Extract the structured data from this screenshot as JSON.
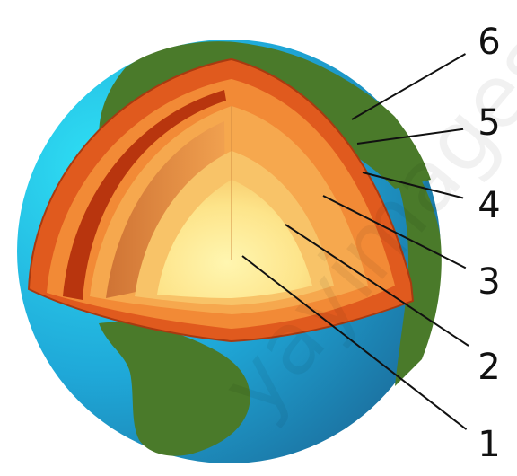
{
  "diagram": {
    "labels": [
      {
        "id": "label-1",
        "text": "1"
      },
      {
        "id": "label-2",
        "text": "2"
      },
      {
        "id": "label-3",
        "text": "3"
      },
      {
        "id": "label-4",
        "text": "4"
      },
      {
        "id": "label-5",
        "text": "5"
      },
      {
        "id": "label-6",
        "text": "6"
      }
    ],
    "watermark": "yayimages",
    "colors": {
      "ocean_light": "#2fd0f0",
      "ocean_dark": "#1f78a8",
      "land": "#4a7a2a",
      "crust": "#e05a1e",
      "mantle_outer": "#c8401a",
      "mantle_inner": "#f2933a",
      "outer_core": "#f7b557",
      "inner_core": "#fbe58a",
      "center": "#fff3a0"
    }
  }
}
